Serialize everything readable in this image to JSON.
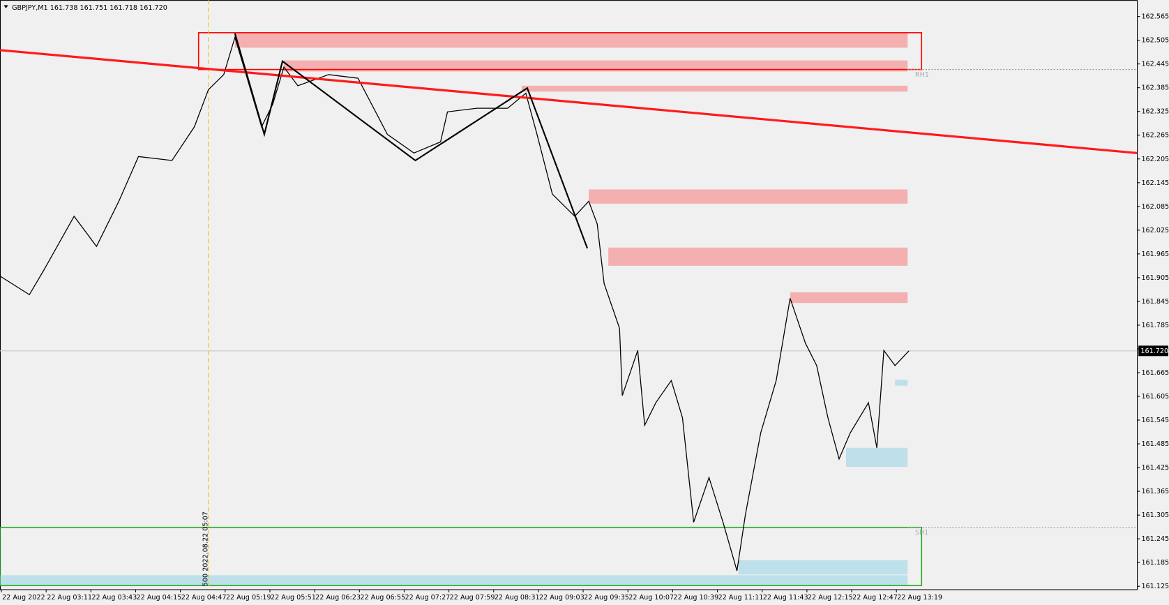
{
  "chart_data": {
    "type": "line",
    "title": "GBPJPY,M1  161.738 161.751 161.718 161.720",
    "color": "#000000",
    "x": [
      0,
      21,
      32,
      53,
      69,
      85,
      99,
      123,
      139,
      149,
      160,
      168,
      176,
      187,
      195,
      203,
      213,
      235,
      256,
      277,
      296,
      315,
      320,
      341,
      363,
      376,
      384,
      395,
      411,
      421,
      427,
      432,
      443,
      445,
      456,
      461,
      469,
      480,
      488,
      496,
      507,
      517,
      527,
      533,
      544,
      555,
      565,
      576,
      584,
      592,
      600,
      608,
      621,
      627,
      632,
      640,
      650
    ],
    "values": [
      161.909,
      161.862,
      161.928,
      162.06,
      161.984,
      162.098,
      162.211,
      162.201,
      162.286,
      162.38,
      162.418,
      162.512,
      162.418,
      162.286,
      162.343,
      162.437,
      162.39,
      162.418,
      162.409,
      162.267,
      162.22,
      162.248,
      162.324,
      162.333,
      162.333,
      162.371,
      162.267,
      162.116,
      162.06,
      162.098,
      162.041,
      161.89,
      161.777,
      161.607,
      161.721,
      161.532,
      161.589,
      161.645,
      161.551,
      161.287,
      161.4,
      161.287,
      161.164,
      161.306,
      161.513,
      161.645,
      161.853,
      161.739,
      161.683,
      161.551,
      161.447,
      161.513,
      161.589,
      161.475,
      161.721,
      161.683,
      161.72
    ],
    "xlim": [
      0,
      813
    ],
    "xticks": [
      {
        "value": 1,
        "label": "22 Aug 2022"
      },
      {
        "value": 33,
        "label": "22 Aug 03:11"
      },
      {
        "value": 65,
        "label": "22 Aug 03:43"
      },
      {
        "value": 97,
        "label": "22 Aug 04:15"
      },
      {
        "value": 129,
        "label": "22 Aug 04:47"
      },
      {
        "value": 161,
        "label": "22 Aug 05:19"
      },
      {
        "value": 193,
        "label": "22 Aug 05:51"
      },
      {
        "value": 225,
        "label": "22 Aug 06:23"
      },
      {
        "value": 257,
        "label": "22 Aug 06:55"
      },
      {
        "value": 289,
        "label": "22 Aug 07:27"
      },
      {
        "value": 321,
        "label": "22 Aug 07:59"
      },
      {
        "value": 353,
        "label": "22 Aug 08:31"
      },
      {
        "value": 385,
        "label": "22 Aug 09:03"
      },
      {
        "value": 417,
        "label": "22 Aug 09:35"
      },
      {
        "value": 449,
        "label": "22 Aug 10:07"
      },
      {
        "value": 481,
        "label": "22 Aug 10:39"
      },
      {
        "value": 513,
        "label": "22 Aug 11:11"
      },
      {
        "value": 545,
        "label": "22 Aug 11:43"
      },
      {
        "value": 577,
        "label": "22 Aug 12:15"
      },
      {
        "value": 609,
        "label": "22 Aug 12:47"
      },
      {
        "value": 641,
        "label": "22 Aug 13:19"
      }
    ],
    "ylim": [
      161.1175,
      162.6065
    ],
    "yticks": [
      162.565,
      162.505,
      162.445,
      162.385,
      162.325,
      162.265,
      162.205,
      162.145,
      162.085,
      162.025,
      161.965,
      161.905,
      161.845,
      161.785,
      161.725,
      161.665,
      161.605,
      161.545,
      161.485,
      161.425,
      161.365,
      161.305,
      161.245,
      161.185,
      161.125
    ],
    "last_price": {
      "value": 161.72,
      "label": "161.720"
    },
    "zones": [
      {
        "x0": 168,
        "x1": 649,
        "from": 162.486,
        "to": 162.524,
        "color": "#f4b0b0"
      },
      {
        "x0": 203,
        "x1": 649,
        "from": 162.426,
        "to": 162.454,
        "color": "#f4b0b0"
      },
      {
        "x0": 373,
        "x1": 649,
        "from": 162.375,
        "to": 162.39,
        "color": "#f4b0b0"
      },
      {
        "x0": 421,
        "x1": 649,
        "from": 162.092,
        "to": 162.128,
        "color": "#f4b0b0"
      },
      {
        "x0": 435,
        "x1": 649,
        "from": 161.935,
        "to": 161.981,
        "color": "#f4b0b0"
      },
      {
        "x0": 565,
        "x1": 649,
        "from": 161.841,
        "to": 161.868,
        "color": "#f4b0b0"
      },
      {
        "x0": 640,
        "x1": 649,
        "from": 161.632,
        "to": 161.647,
        "color": "#bde0ea"
      },
      {
        "x0": 605,
        "x1": 649,
        "from": 161.427,
        "to": 161.475,
        "color": "#bde0ea"
      },
      {
        "x0": 528,
        "x1": 649,
        "from": 161.155,
        "to": 161.191,
        "color": "#bde0ea"
      },
      {
        "x0": 0,
        "x1": 649,
        "from": 161.127,
        "to": 161.153,
        "color": "#bde0ea"
      }
    ],
    "boxes": [
      {
        "x0": 142,
        "x1": 659,
        "from": 162.431,
        "to": 162.524,
        "color": "#ff0000"
      },
      {
        "x0": 0,
        "x1": 659,
        "from": 161.127,
        "to": 161.274,
        "color": "#22aa22"
      }
    ],
    "trendline": {
      "x": [
        0,
        813
      ],
      "values": [
        162.48,
        162.22
      ],
      "color": "#ff1a1a"
    },
    "zigzag": {
      "x": [
        168,
        189,
        202,
        297,
        377,
        420
      ],
      "values": [
        162.522,
        162.267,
        162.452,
        162.201,
        162.384,
        161.979
      ],
      "color": "#000000"
    },
    "levels": [
      {
        "label": "RH1",
        "value": 162.431,
        "x0": 649
      },
      {
        "label": "SH1",
        "value": 161.274,
        "x0": 649
      }
    ],
    "marker": {
      "x": 149,
      "label": "500 2022.08.22 05:07",
      "color": "#f0c020"
    }
  }
}
